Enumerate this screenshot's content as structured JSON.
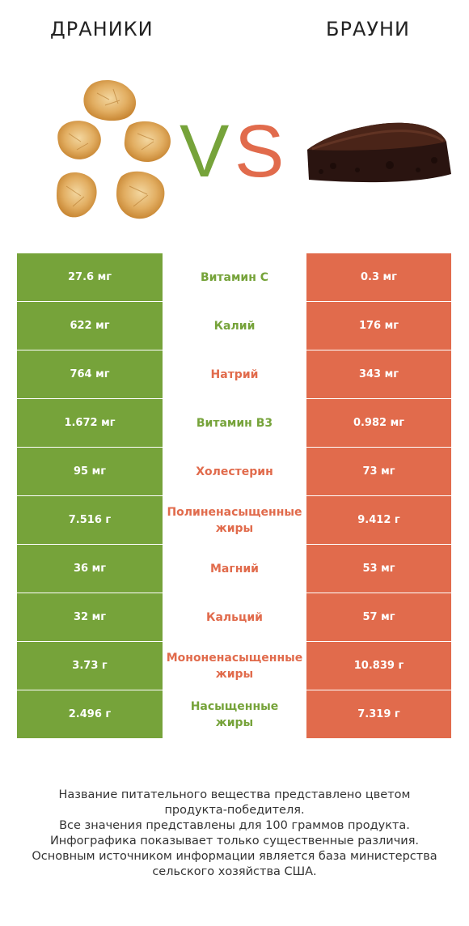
{
  "header": {
    "left": "ДРАНИКИ",
    "right": "БРАУНИ"
  },
  "vs": {
    "v": "V",
    "s": "S",
    "v_color": "#76a33a",
    "s_color": "#e16b4c"
  },
  "colors": {
    "green": "#76a33a",
    "red": "#e16b4c"
  },
  "rows": [
    {
      "left": "27.6 мг",
      "name": "Витамин C",
      "right": "0.3 мг",
      "winner": "left"
    },
    {
      "left": "622 мг",
      "name": "Калий",
      "right": "176 мг",
      "winner": "left"
    },
    {
      "left": "764 мг",
      "name": "Натрий",
      "right": "343 мг",
      "winner": "right"
    },
    {
      "left": "1.672 мг",
      "name": "Витамин B3",
      "right": "0.982 мг",
      "winner": "left"
    },
    {
      "left": "95 мг",
      "name": "Холестерин",
      "right": "73 мг",
      "winner": "right"
    },
    {
      "left": "7.516 г",
      "name": "Полиненасыщенные жиры",
      "name_lines": [
        "Полиненасыщенные",
        "жиры"
      ],
      "right": "9.412 г",
      "winner": "right"
    },
    {
      "left": "36 мг",
      "name": "Магний",
      "right": "53 мг",
      "winner": "right"
    },
    {
      "left": "32 мг",
      "name": "Кальций",
      "right": "57 мг",
      "winner": "right"
    },
    {
      "left": "3.73 г",
      "name": "Мононенасыщенные жиры",
      "name_lines": [
        "Мононенасыщенные",
        "жиры"
      ],
      "right": "10.839 г",
      "winner": "right"
    },
    {
      "left": "2.496 г",
      "name": "Насыщенные жиры",
      "name_lines": [
        "Насыщенные",
        "жиры"
      ],
      "right": "7.319 г",
      "winner": "left"
    }
  ],
  "footer": {
    "line1": "Название питательного вещества представлено цветом",
    "line2": "продукта-победителя.",
    "line3": "Все значения представлены для 100 граммов продукта.",
    "line4": "Инфографика показывает только существенные различия.",
    "line5": "Основным источником информации является база министерства",
    "line6": "сельского хозяйства США."
  }
}
